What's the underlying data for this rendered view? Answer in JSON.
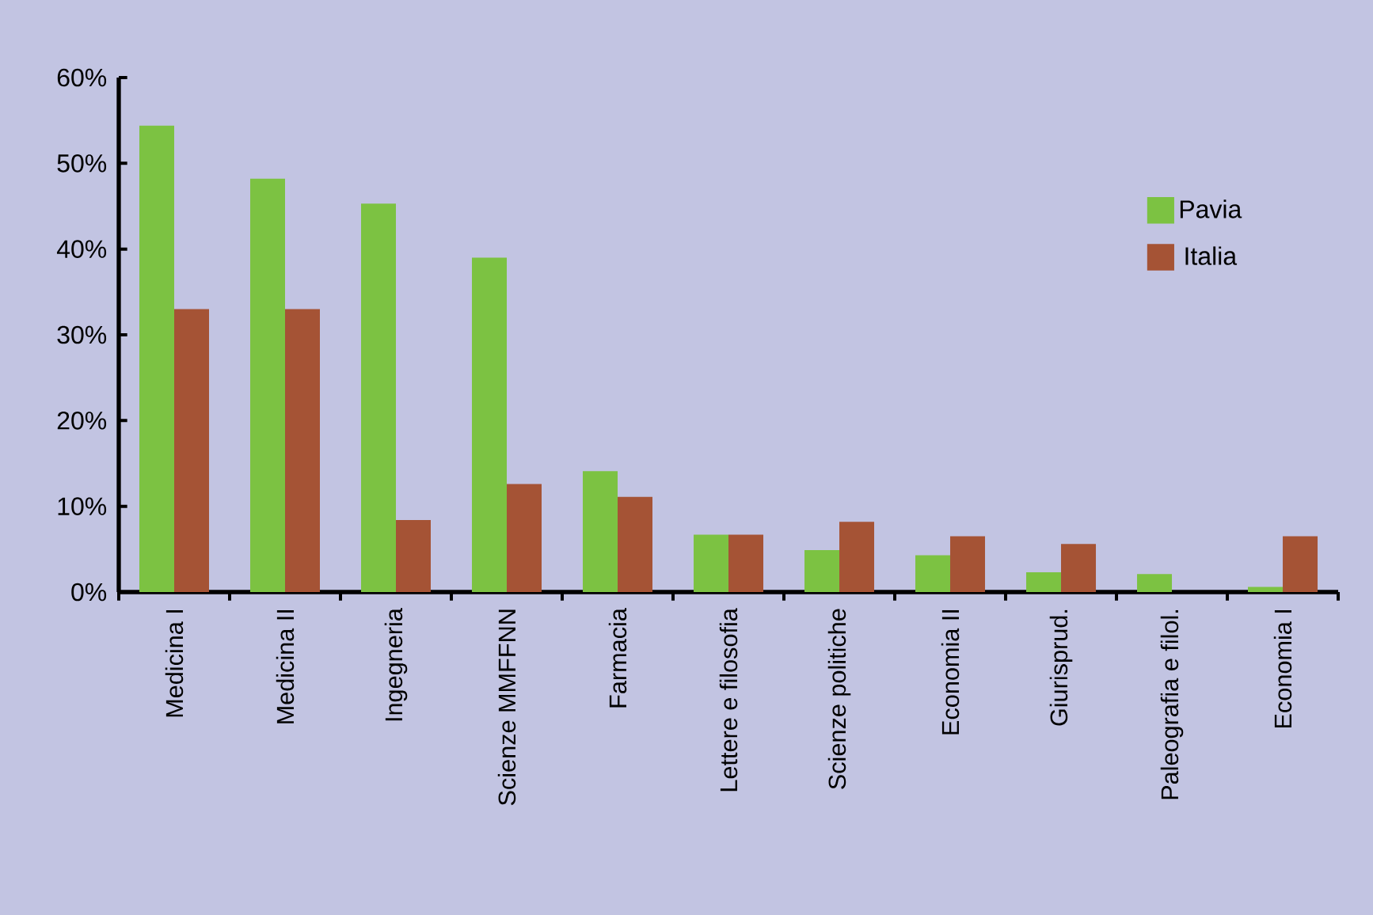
{
  "chart_data": {
    "type": "bar",
    "categories": [
      "Medicina I",
      "Medicina II",
      "Ingegneria",
      "Scienze MMFFNN",
      "Farmacia",
      "Lettere e filosofia",
      "Scienze politiche",
      "Economia II",
      "Giurisprud.",
      "Paleografia e filol.",
      "Economia I"
    ],
    "series": [
      {
        "name": "Pavia",
        "color": "#7cc242",
        "values": [
          54.4,
          48.2,
          45.3,
          39.0,
          14.1,
          6.7,
          4.9,
          4.3,
          2.3,
          2.1,
          0.6
        ]
      },
      {
        "name": "Italia",
        "color": "#a55335",
        "values": [
          33.0,
          33.0,
          8.4,
          12.6,
          11.1,
          6.7,
          8.2,
          6.5,
          5.6,
          null,
          6.5
        ]
      }
    ],
    "ylim": [
      0,
      60
    ],
    "yticks": [
      {
        "value": 0,
        "label": "0%"
      },
      {
        "value": 10,
        "label": "10%"
      },
      {
        "value": 20,
        "label": "20%"
      },
      {
        "value": 30,
        "label": "30%"
      },
      {
        "value": 40,
        "label": "40%"
      },
      {
        "value": 50,
        "label": "50%"
      },
      {
        "value": 60,
        "label": "60%"
      }
    ],
    "legend": "right",
    "grid": false
  }
}
